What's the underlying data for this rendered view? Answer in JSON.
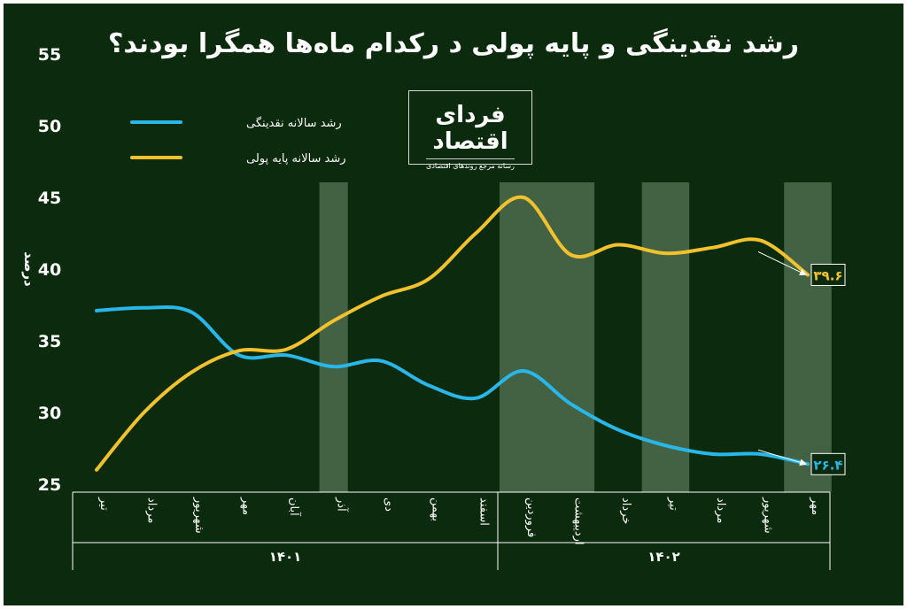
{
  "title": "رشد نقدینگی و پایه پولی د رکدام ماه‌ها همگرا بودند؟",
  "logo": {
    "main": "فردای اقتصاد",
    "sub": "رسانه مرجع روندهای اقتصادی"
  },
  "colors": {
    "background": "#0c2a0d",
    "liquidity": "#29b6e8",
    "base_money": "#f2c12e",
    "highlight": "#5b7b5b"
  },
  "chart_data": {
    "type": "line",
    "title": "رشد نقدینگی و پایه پولی د رکدام ماه‌ها همگرا بودند؟",
    "ylabel": "درصد",
    "ylim": [
      25,
      55
    ],
    "yticks": [
      "25",
      "30",
      "35",
      "40",
      "45",
      "50",
      "55"
    ],
    "categories": [
      "تیر",
      "مرداد",
      "شهریور",
      "مهر",
      "آبان",
      "آذر",
      "دی",
      "بهمن",
      "اسفند",
      "فروردین",
      "اردیبهشت",
      "خرداد",
      "تیر",
      "مرداد",
      "شهریور",
      "مهر"
    ],
    "years": [
      {
        "label": "۱۴۰۱",
        "start": 0,
        "end": 8
      },
      {
        "label": "۱۴۰۲",
        "start": 9,
        "end": 15
      }
    ],
    "highlight_ranges": [
      [
        5,
        5
      ],
      [
        8.5,
        10.5
      ],
      [
        11.5,
        12.5
      ],
      [
        14.5,
        15.5
      ]
    ],
    "legend_position": "top-left",
    "series": [
      {
        "name": "رشد سالانه نقدینگی",
        "color": "#29b6e8",
        "values": [
          37.1,
          37.3,
          37.0,
          34.0,
          34.0,
          33.2,
          33.6,
          31.9,
          31.0,
          32.9,
          30.6,
          28.8,
          27.7,
          27.1,
          27.1,
          26.4
        ],
        "end_label": "۲۶.۴"
      },
      {
        "name": "رشد سالانه پایه پولی",
        "color": "#f2c12e",
        "values": [
          26.0,
          30.0,
          32.8,
          34.3,
          34.4,
          36.4,
          38.1,
          39.3,
          42.5,
          45.0,
          41.0,
          41.7,
          41.1,
          41.5,
          42.0,
          39.6
        ],
        "end_label": "۳۹.۶"
      }
    ]
  }
}
